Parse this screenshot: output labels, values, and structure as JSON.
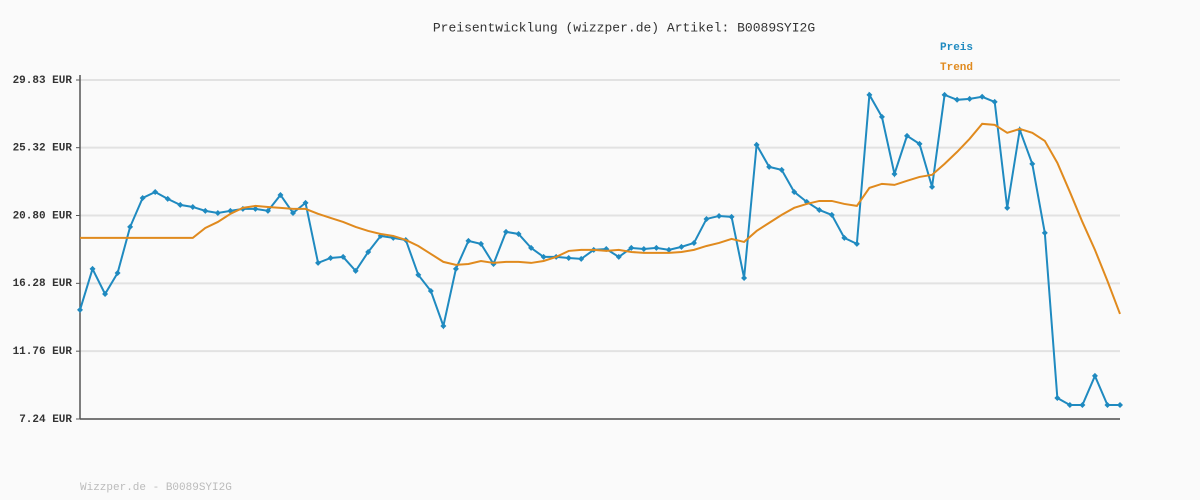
{
  "chart_data": {
    "type": "line",
    "title": "Preisentwicklung (wizzper.de) Artikel: B0089SYI2G",
    "source": "Wizzper.de - B0089SYI2G",
    "categories": [
      null,
      null,
      null,
      null,
      null,
      null,
      null,
      null,
      null,
      null,
      null,
      null,
      null,
      null,
      null,
      null,
      null,
      null,
      null,
      null,
      null,
      null,
      null,
      null,
      null,
      null,
      null,
      null,
      null,
      null,
      null,
      null,
      null,
      null,
      null,
      null,
      null,
      null,
      null,
      null,
      null,
      null,
      null,
      null,
      null,
      null,
      null,
      null,
      null,
      null,
      null,
      null,
      null,
      null,
      null,
      null,
      null,
      null,
      null,
      null,
      null,
      null,
      null,
      null,
      null,
      null,
      null,
      null,
      null,
      null,
      null,
      null,
      null,
      null,
      null,
      null,
      null,
      null,
      null,
      null,
      null,
      null,
      null,
      null
    ],
    "series": [
      {
        "name": "Preis",
        "color": "#1f8ac0",
        "markers": true,
        "values": [
          14.51,
          17.24,
          15.57,
          16.97,
          20.04,
          21.97,
          22.37,
          21.91,
          21.51,
          21.37,
          21.11,
          20.97,
          21.11,
          21.24,
          21.24,
          21.11,
          22.17,
          20.97,
          21.64,
          17.64,
          17.97,
          18.04,
          17.11,
          18.37,
          19.44,
          19.31,
          19.17,
          16.84,
          15.77,
          13.44,
          17.24,
          19.11,
          18.91,
          17.57,
          19.71,
          19.57,
          18.64,
          18.04,
          18.04,
          17.97,
          17.91,
          18.51,
          18.57,
          18.04,
          18.64,
          18.57,
          18.64,
          18.51,
          18.71,
          18.97,
          20.57,
          20.77,
          20.71,
          16.64,
          25.51,
          24.04,
          23.84,
          22.37,
          21.71,
          21.17,
          20.84,
          19.31,
          18.91,
          28.84,
          27.37,
          23.57,
          26.11,
          25.57,
          22.71,
          28.84,
          28.51,
          28.57,
          28.71,
          28.37,
          21.31,
          26.51,
          24.24,
          19.64,
          8.64,
          8.17,
          8.17,
          10.11,
          8.17,
          8.17
        ]
      },
      {
        "name": "Trend",
        "color": "#e08a1e",
        "markers": false,
        "values": [
          19.31,
          19.31,
          19.31,
          19.31,
          19.31,
          19.31,
          19.31,
          19.31,
          19.31,
          19.31,
          19.97,
          20.37,
          20.91,
          21.31,
          21.44,
          21.37,
          21.31,
          21.24,
          21.24,
          20.91,
          20.64,
          20.37,
          20.04,
          19.77,
          19.57,
          19.44,
          19.17,
          18.77,
          18.24,
          17.71,
          17.51,
          17.57,
          17.77,
          17.64,
          17.71,
          17.71,
          17.64,
          17.77,
          18.04,
          18.44,
          18.51,
          18.51,
          18.44,
          18.51,
          18.37,
          18.31,
          18.31,
          18.31,
          18.37,
          18.51,
          18.77,
          18.97,
          19.24,
          19.04,
          19.77,
          20.31,
          20.84,
          21.31,
          21.57,
          21.77,
          21.77,
          21.57,
          21.44,
          22.64,
          22.91,
          22.84,
          23.11,
          23.37,
          23.51,
          24.24,
          25.04,
          25.91,
          26.91,
          26.84,
          26.31,
          26.57,
          26.31,
          25.77,
          24.31,
          22.37,
          20.37,
          18.51,
          16.44,
          14.24
        ]
      }
    ],
    "ylim": [
      7.24,
      29.83
    ],
    "yticks": [
      {
        "value": 7.24,
        "label": "7.24 EUR"
      },
      {
        "value": 11.76,
        "label": "11.76 EUR"
      },
      {
        "value": 16.28,
        "label": "16.28 EUR"
      },
      {
        "value": 20.8,
        "label": "20.80 EUR"
      },
      {
        "value": 25.32,
        "label": "25.32 EUR"
      },
      {
        "value": 29.83,
        "label": "29.83 EUR"
      }
    ],
    "grid": true,
    "legend": "top-right"
  }
}
